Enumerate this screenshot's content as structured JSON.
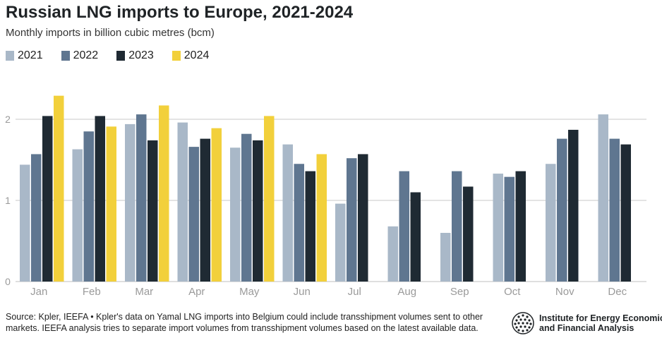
{
  "title": "Russian LNG imports to Europe, 2021-2024",
  "subtitle": "Monthly imports in billion cubic metres (bcm)",
  "legend": [
    {
      "label": "2021",
      "color": "#a9b8c8"
    },
    {
      "label": "2022",
      "color": "#5f7690"
    },
    {
      "label": "2023",
      "color": "#1f2a33"
    },
    {
      "label": "2024",
      "color": "#f2d03b"
    }
  ],
  "chart_data": {
    "type": "bar",
    "categories": [
      "Jan",
      "Feb",
      "Mar",
      "Apr",
      "May",
      "Jun",
      "Jul",
      "Aug",
      "Sep",
      "Oct",
      "Nov",
      "Dec"
    ],
    "series": [
      {
        "name": "2021",
        "values": [
          1.44,
          1.63,
          1.94,
          1.96,
          1.65,
          1.69,
          0.96,
          0.68,
          0.6,
          1.33,
          1.45,
          2.06
        ]
      },
      {
        "name": "2022",
        "values": [
          1.57,
          1.85,
          2.06,
          1.66,
          1.82,
          1.45,
          1.52,
          1.36,
          1.36,
          1.29,
          1.76,
          1.76
        ]
      },
      {
        "name": "2023",
        "values": [
          2.04,
          2.04,
          1.74,
          1.76,
          1.74,
          1.36,
          1.57,
          1.1,
          1.17,
          1.36,
          1.87,
          1.69
        ]
      },
      {
        "name": "2024",
        "values": [
          2.29,
          1.91,
          2.17,
          1.89,
          2.04,
          1.57,
          null,
          null,
          null,
          null,
          null,
          null
        ]
      }
    ],
    "yticks": [
      "0",
      "1",
      "2"
    ],
    "ylim": [
      0,
      2.4
    ],
    "grid": true
  },
  "footer": "Source: Kpler, IEEFA • Kpler's data on Yamal LNG imports into Belgium could include transshipment volumes sent to other markets. IEEFA analysis tries to separate import volumes from transshipment volumes based on the latest available data.",
  "logo": {
    "line1": "Institute for Energy Economics",
    "line2": "and Financial Analysis",
    "icon": "globe-icon"
  }
}
